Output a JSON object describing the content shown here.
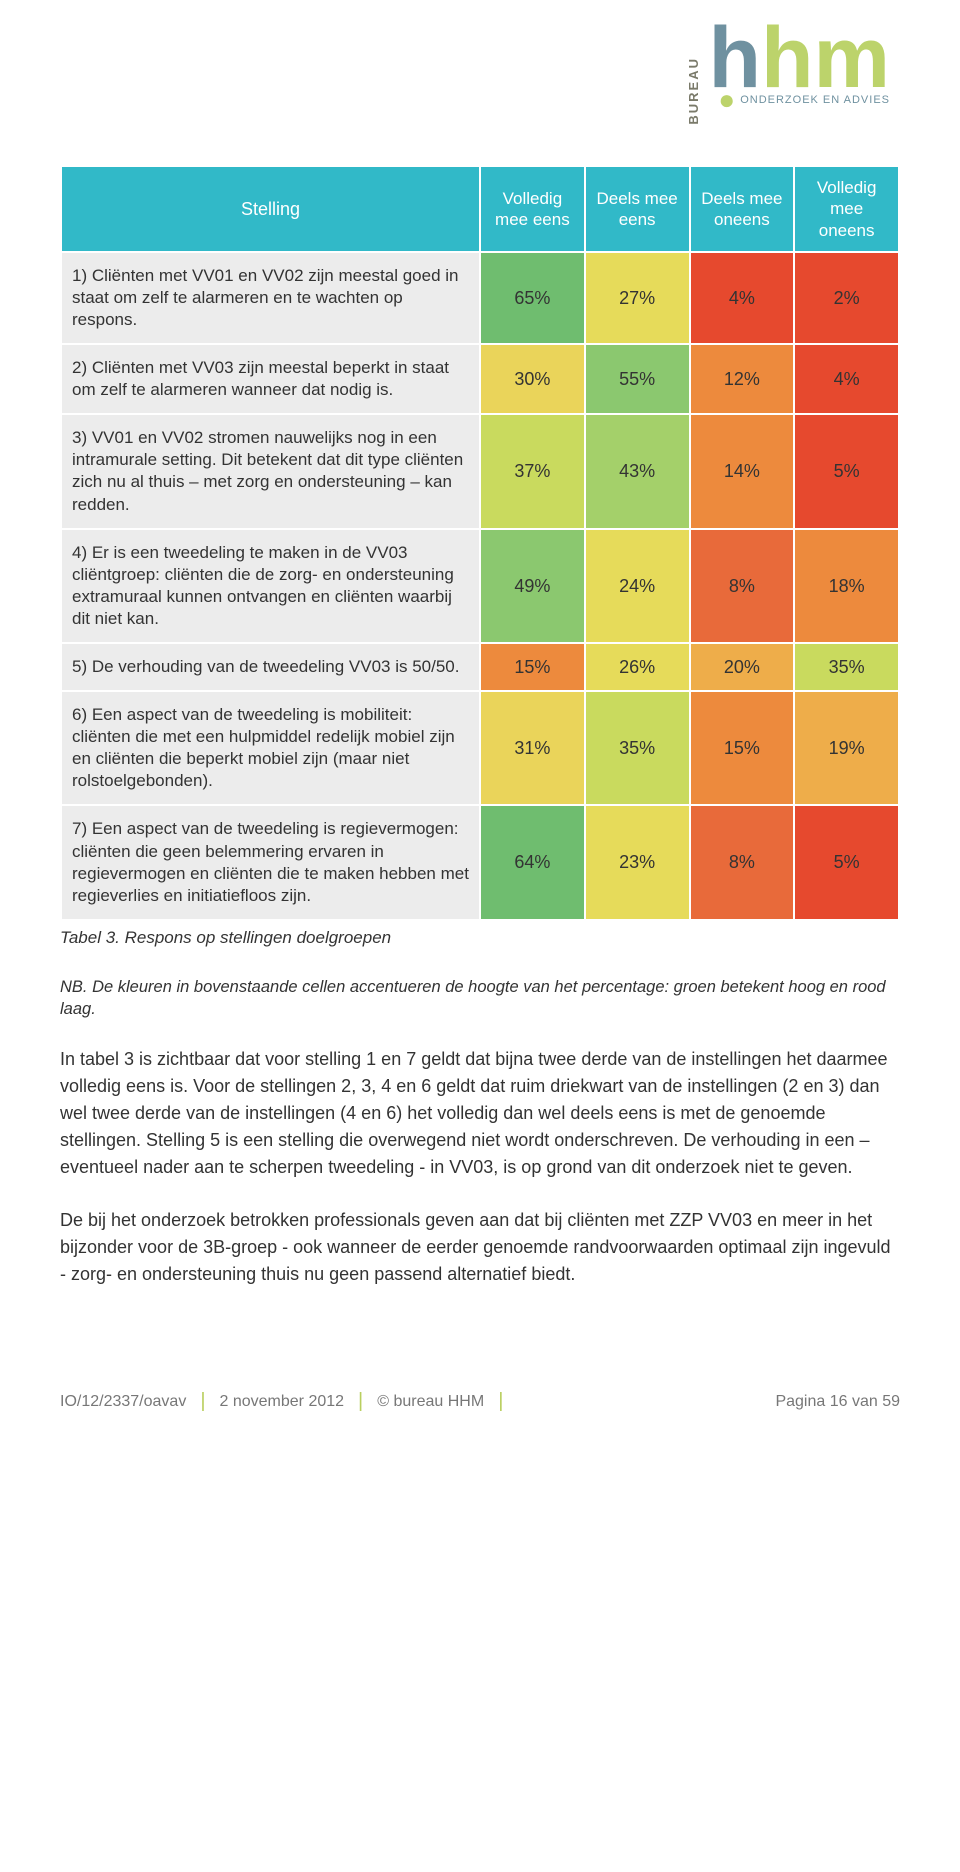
{
  "logo": {
    "bureau": "BUREAU",
    "letters": [
      "h",
      "h",
      "m"
    ],
    "letter_colors": [
      "#6f91a0",
      "#bcd36b",
      "#bcd36b"
    ],
    "tagline_dot_color": "#bcd36b",
    "tagline": "ONDERZOEK EN ADVIES"
  },
  "table": {
    "headers": {
      "stelling": "Stelling",
      "cols": [
        "Volledig mee eens",
        "Deels mee eens",
        "Deels mee oneens",
        "Volledig mee oneens"
      ]
    },
    "col_widths_pct": [
      50,
      12.5,
      12.5,
      12.5,
      12.5
    ],
    "statement_bg": "#ececec",
    "header_bg": "#31b9c8",
    "rows": [
      {
        "text": "1) Cliënten met VV01 en VV02 zijn meestal goed in staat om zelf te alarmeren en te wachten op respons.",
        "cells": [
          {
            "v": "65%",
            "c": "#6fbd6f"
          },
          {
            "v": "27%",
            "c": "#e6db5a"
          },
          {
            "v": "4%",
            "c": "#e6492e"
          },
          {
            "v": "2%",
            "c": "#e6492e"
          }
        ]
      },
      {
        "text": "2) Cliënten met VV03 zijn meestal beperkt in staat om zelf te alarmeren wanneer dat nodig is.",
        "cells": [
          {
            "v": "30%",
            "c": "#ead45a"
          },
          {
            "v": "55%",
            "c": "#8bc86f"
          },
          {
            "v": "12%",
            "c": "#ed8a3d"
          },
          {
            "v": "4%",
            "c": "#e6492e"
          }
        ]
      },
      {
        "text": "3) VV01 en VV02 stromen nauwelijks nog in een intramurale setting. Dit betekent dat dit type cliënten zich nu al thuis – met zorg en ondersteuning – kan redden.",
        "cells": [
          {
            "v": "37%",
            "c": "#c9da5e"
          },
          {
            "v": "43%",
            "c": "#a4d06a"
          },
          {
            "v": "14%",
            "c": "#ed8a3d"
          },
          {
            "v": "5%",
            "c": "#e6492e"
          }
        ]
      },
      {
        "text": "4) Er is een tweedeling te maken in de VV03 cliëntgroep: cliënten die de zorg- en ondersteuning extramuraal kunnen ontvangen en cliënten waarbij dit niet kan.",
        "cells": [
          {
            "v": "49%",
            "c": "#8bc86f"
          },
          {
            "v": "24%",
            "c": "#e6db5a"
          },
          {
            "v": "8%",
            "c": "#e86a3a"
          },
          {
            "v": "18%",
            "c": "#ed8a3d"
          }
        ]
      },
      {
        "text": "5) De verhouding van de tweedeling VV03 is 50/50.",
        "cells": [
          {
            "v": "15%",
            "c": "#ed8a3d"
          },
          {
            "v": "26%",
            "c": "#e6db5a"
          },
          {
            "v": "20%",
            "c": "#eead4a"
          },
          {
            "v": "35%",
            "c": "#c9da5e"
          }
        ]
      },
      {
        "text": "6) Een aspect van de tweedeling is mobiliteit: cliënten die met een hulpmiddel redelijk mobiel zijn en cliënten die beperkt mobiel zijn (maar niet rolstoelgebonden).",
        "cells": [
          {
            "v": "31%",
            "c": "#ead45a"
          },
          {
            "v": "35%",
            "c": "#c9da5e"
          },
          {
            "v": "15%",
            "c": "#ed8a3d"
          },
          {
            "v": "19%",
            "c": "#eead4a"
          }
        ]
      },
      {
        "text": "7) Een aspect van de tweedeling is regie­vermogen: cliënten die geen belemmering ervaren in regievermogen en cliënten die te maken hebben met regieverlies en initiatief­loos zijn.",
        "cells": [
          {
            "v": "64%",
            "c": "#6fbd6f"
          },
          {
            "v": "23%",
            "c": "#e6db5a"
          },
          {
            "v": "8%",
            "c": "#e86a3a"
          },
          {
            "v": "5%",
            "c": "#e6492e"
          }
        ]
      }
    ]
  },
  "caption": "Tabel 3. Respons op stellingen doelgroepen",
  "note": "NB. De kleuren in bovenstaande cellen accentueren de hoogte van het percentage: groen betekent hoog en rood laag.",
  "para1": "In tabel 3 is zichtbaar dat voor stelling 1 en 7 geldt dat bijna twee derde van de instellingen het daarmee volledig eens is. Voor de stellingen 2, 3, 4 en 6 geldt dat ruim driekwart van de instellingen (2 en 3) dan wel twee derde van de instellingen (4 en 6) het volledig dan wel deels eens is met de genoemde stellingen. Stelling 5 is een stelling die overwegend niet wordt onderschreven. De verhouding in een – eventueel nader aan te scherpen tweedeling - in VV03, is op grond van dit onderzoek niet te geven.",
  "para2": "De bij het onderzoek betrokken professionals geven aan dat bij cliënten met ZZP VV03 en meer in het bijzonder voor de 3B-groep - ook wanneer de eerder genoemde randvoorwaarden optimaal zijn ingevuld - zorg- en ondersteuning thuis nu geen passend alternatief biedt.",
  "footer": {
    "ref": "IO/12/2337/oavav",
    "date": "2 november 2012",
    "org": "© bureau HHM",
    "page": "Pagina 16 van 59",
    "sep_color": "#b9cf5f"
  }
}
